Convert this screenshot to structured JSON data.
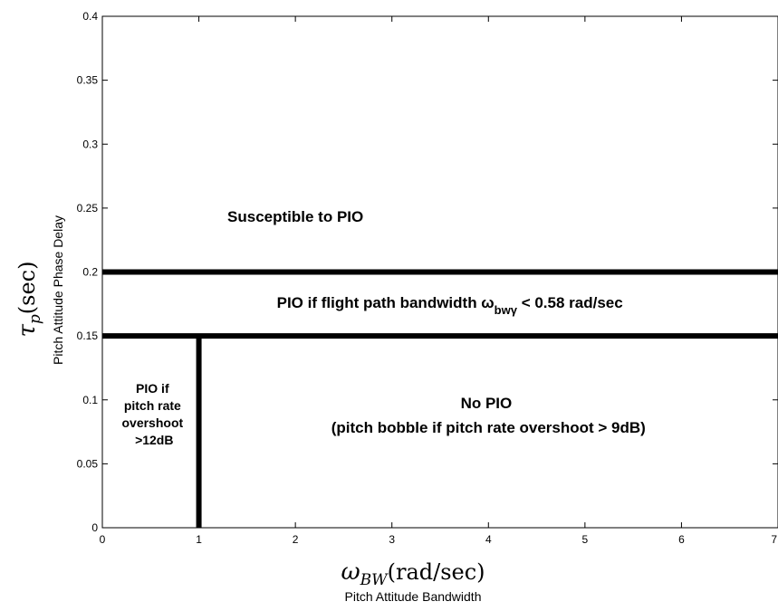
{
  "chart_data": {
    "type": "line",
    "xlim": [
      0,
      7
    ],
    "ylim": [
      0,
      0.4
    ],
    "x_ticks": [
      "0",
      "1",
      "2",
      "3",
      "4",
      "5",
      "6",
      "7"
    ],
    "y_ticks": [
      "0",
      "0.05",
      "0.1",
      "0.15",
      "0.2",
      "0.25",
      "0.3",
      "0.35",
      "0.4"
    ],
    "grid": false,
    "xlabel": {
      "symbol": "ω",
      "subscript": "BW",
      "unit": "(rad/sec)",
      "description": "Pitch Attitude Bandwidth"
    },
    "ylabel": {
      "symbol": "τ",
      "subscript": "p",
      "unit": "(sec)",
      "description": "Pitch Attitude Phase Delay"
    },
    "boundaries": [
      {
        "x": [
          0,
          7
        ],
        "y": [
          0.2,
          0.2
        ]
      },
      {
        "x": [
          0,
          7
        ],
        "y": [
          0.15,
          0.15
        ]
      },
      {
        "x": [
          1,
          1
        ],
        "y": [
          0,
          0.15
        ]
      }
    ],
    "annotations": [
      {
        "text": "Susceptible to PIO",
        "x": 2.0,
        "y": 0.25
      },
      {
        "text_before": "PIO if flight path bandwidth ω",
        "subscript": "bwγ",
        "text_after": " < 0.58 rad/sec",
        "x": 3.6,
        "y": 0.175
      },
      {
        "lines": [
          "PIO if",
          "pitch rate",
          "overshoot",
          ">12dB"
        ],
        "x": 0.5,
        "y": 0.09
      },
      {
        "lines": [
          "No PIO",
          "(pitch bobble if pitch rate overshoot > 9dB)"
        ],
        "x": 4.0,
        "y": 0.1
      }
    ]
  }
}
